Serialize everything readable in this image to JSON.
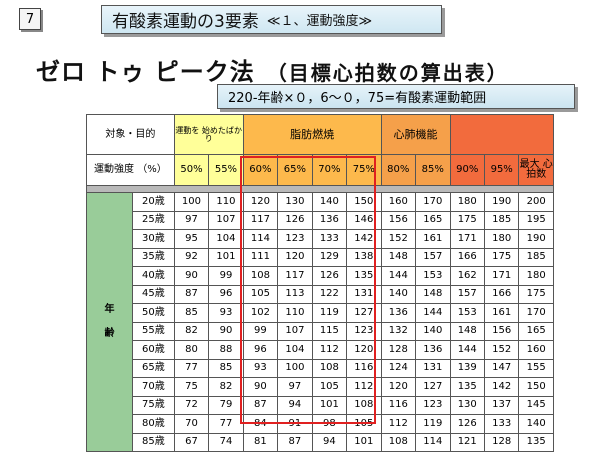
{
  "slide_number": "7",
  "title_main": "有酸素運動の3要素",
  "title_sub": "≪１、運動強度≫",
  "heading": "ゼロ トゥ ピーク法",
  "heading_paren": "（目標心拍数の算出表）",
  "formula": "220-年齢×０，6～０，75=有酸素運動範囲",
  "table": {
    "corner": "対象・目的",
    "group_beginner": "運動を 始めたばかり",
    "group_fat": "脂肪燃焼",
    "group_cardio": "心肺機能",
    "intensity_label": "運動強度 （%）",
    "percents": [
      "50%",
      "55%",
      "60%",
      "65%",
      "70%",
      "75%",
      "80%",
      "85%",
      "90%",
      "95%"
    ],
    "max_label": "最大 心拍数",
    "age_group_label": [
      "年",
      "齢"
    ],
    "rows": [
      {
        "age": "20歳",
        "values": [
          "100",
          "110",
          "120",
          "130",
          "140",
          "150",
          "160",
          "170",
          "180",
          "190",
          "200"
        ]
      },
      {
        "age": "25歳",
        "values": [
          "97",
          "107",
          "117",
          "126",
          "136",
          "146",
          "156",
          "165",
          "175",
          "185",
          "195"
        ]
      },
      {
        "age": "30歳",
        "values": [
          "95",
          "104",
          "114",
          "123",
          "133",
          "142",
          "152",
          "161",
          "171",
          "180",
          "190"
        ]
      },
      {
        "age": "35歳",
        "values": [
          "92",
          "101",
          "111",
          "120",
          "129",
          "138",
          "148",
          "157",
          "166",
          "175",
          "185"
        ]
      },
      {
        "age": "40歳",
        "values": [
          "90",
          "99",
          "108",
          "117",
          "126",
          "135",
          "144",
          "153",
          "162",
          "171",
          "180"
        ]
      },
      {
        "age": "45歳",
        "values": [
          "87",
          "96",
          "105",
          "113",
          "122",
          "131",
          "140",
          "148",
          "157",
          "166",
          "175"
        ]
      },
      {
        "age": "50歳",
        "values": [
          "85",
          "93",
          "102",
          "110",
          "119",
          "127",
          "136",
          "144",
          "153",
          "161",
          "170"
        ]
      },
      {
        "age": "55歳",
        "values": [
          "82",
          "90",
          "99",
          "107",
          "115",
          "123",
          "132",
          "140",
          "148",
          "156",
          "165"
        ]
      },
      {
        "age": "60歳",
        "values": [
          "80",
          "88",
          "96",
          "104",
          "112",
          "120",
          "128",
          "136",
          "144",
          "152",
          "160"
        ]
      },
      {
        "age": "65歳",
        "values": [
          "77",
          "85",
          "93",
          "100",
          "108",
          "116",
          "124",
          "131",
          "139",
          "147",
          "155"
        ]
      },
      {
        "age": "70歳",
        "values": [
          "75",
          "82",
          "90",
          "97",
          "105",
          "112",
          "120",
          "127",
          "135",
          "142",
          "150"
        ]
      },
      {
        "age": "75歳",
        "values": [
          "72",
          "79",
          "87",
          "94",
          "101",
          "108",
          "116",
          "123",
          "130",
          "137",
          "145"
        ]
      },
      {
        "age": "80歳",
        "values": [
          "70",
          "77",
          "84",
          "91",
          "98",
          "105",
          "112",
          "119",
          "126",
          "133",
          "140"
        ]
      },
      {
        "age": "85歳",
        "values": [
          "67",
          "74",
          "81",
          "87",
          "94",
          "101",
          "108",
          "114",
          "121",
          "128",
          "135"
        ]
      }
    ]
  }
}
